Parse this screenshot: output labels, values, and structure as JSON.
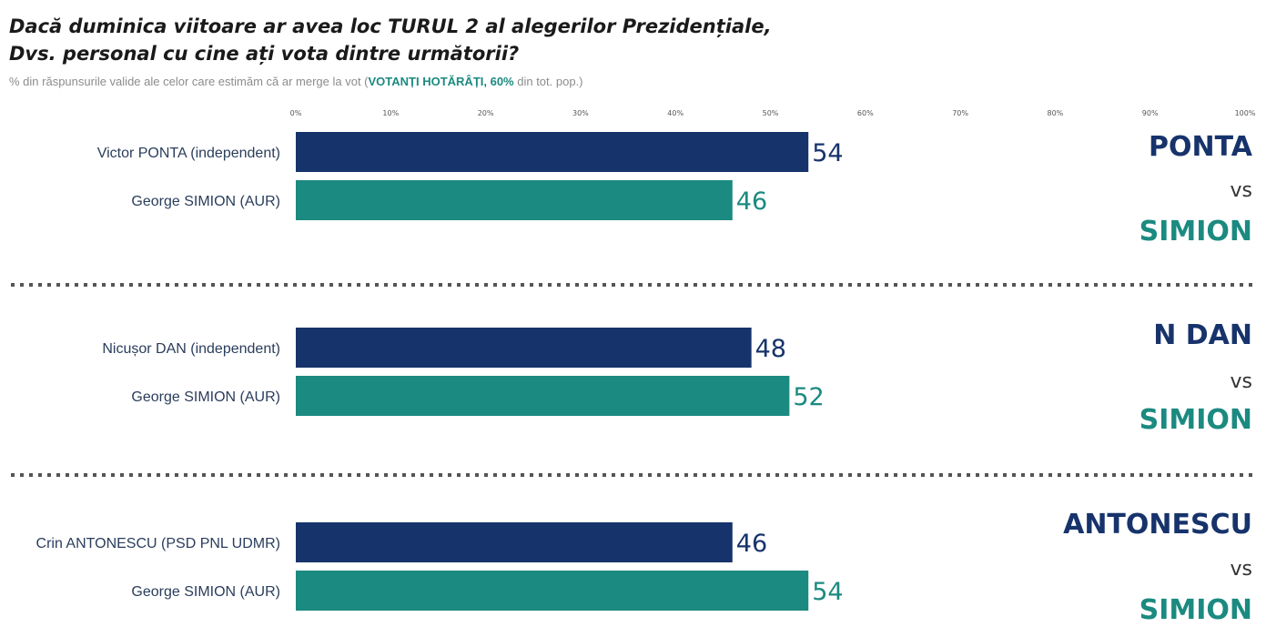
{
  "header": {
    "title_line1": "Dacă duminica viitoare ar avea loc TURUL 2 al alegerilor Prezidențiale,",
    "title_line2": "Dvs. personal cu cine ați vota dintre următorii?",
    "subtitle_pre": "% din răspunsurile valide ale celor care estimăm că ar merge la vot (",
    "subtitle_highlight": "VOTANȚI HOTĂRÂȚI, 60%",
    "subtitle_post": " din tot. pop.)"
  },
  "colors": {
    "navy": "#17336b",
    "teal": "#1b8a80",
    "label": "#2a3d5c",
    "tick": "#555555",
    "separator": "#555555"
  },
  "chart_data": {
    "type": "bar",
    "orientation": "horizontal",
    "xlim": [
      0,
      100
    ],
    "ticks": [
      "0%",
      "10%",
      "20%",
      "30%",
      "40%",
      "50%",
      "60%",
      "70%",
      "80%",
      "90%",
      "100%"
    ],
    "tick_values": [
      0,
      10,
      20,
      30,
      40,
      50,
      60,
      70,
      80,
      90,
      100
    ],
    "grid": false,
    "groups": [
      {
        "bars": [
          {
            "label": "Victor PONTA (independent)",
            "value": 54,
            "value_label": "54",
            "color": "navy"
          },
          {
            "label": "George SIMION (AUR)",
            "value": 46,
            "value_label": "46",
            "color": "teal"
          }
        ],
        "side_top": "PONTA",
        "side_vs": "vs",
        "side_bottom": "SIMION"
      },
      {
        "bars": [
          {
            "label": "Nicușor DAN (independent)",
            "value": 48,
            "value_label": "48",
            "color": "navy"
          },
          {
            "label": "George SIMION (AUR)",
            "value": 52,
            "value_label": "52",
            "color": "teal"
          }
        ],
        "side_top": "N DAN",
        "side_vs": "vs",
        "side_bottom": "SIMION"
      },
      {
        "bars": [
          {
            "label": "Crin ANTONESCU (PSD PNL UDMR)",
            "value": 46,
            "value_label": "46",
            "color": "navy"
          },
          {
            "label": "George SIMION (AUR)",
            "value": 54,
            "value_label": "54",
            "color": "teal"
          }
        ],
        "side_top": "ANTONESCU",
        "side_vs": "vs",
        "side_bottom": "SIMION"
      }
    ]
  }
}
